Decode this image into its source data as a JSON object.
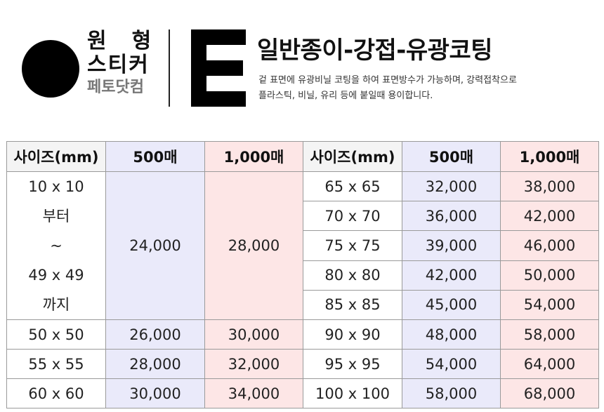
{
  "brand": {
    "line1": "원형",
    "line2": "스티커",
    "line3": "페토닷컴"
  },
  "product": {
    "letter": "E",
    "title": "일반종이-강접-유광코팅",
    "description_lines": [
      "겉 표면에 유광비닐 코팅을 하여 표면방수가 가능하며, 강력접착으로",
      "플라스틱, 비닐, 유리 등에 붙일때 용이합니다."
    ]
  },
  "table": {
    "headers": [
      "사이즈(mm)",
      "500매",
      "1,000매",
      "사이즈(mm)",
      "500매",
      "1,000매"
    ],
    "left_merged": {
      "size_lines": [
        "10 x 10",
        "부터",
        "~",
        "49 x 49",
        "까지"
      ],
      "price_500": "24,000",
      "price_1000": "28,000"
    },
    "left_rows": [
      {
        "size": "50 x 50",
        "p500": "26,000",
        "p1000": "30,000"
      },
      {
        "size": "55 x 55",
        "p500": "28,000",
        "p1000": "32,000"
      },
      {
        "size": "60 x 60",
        "p500": "30,000",
        "p1000": "34,000"
      }
    ],
    "right_rows": [
      {
        "size": "65 x 65",
        "p500": "32,000",
        "p1000": "38,000"
      },
      {
        "size": "70 x 70",
        "p500": "36,000",
        "p1000": "42,000"
      },
      {
        "size": "75 x 75",
        "p500": "39,000",
        "p1000": "46,000"
      },
      {
        "size": "80 x 80",
        "p500": "42,000",
        "p1000": "50,000"
      },
      {
        "size": "85 x 85",
        "p500": "45,000",
        "p1000": "54,000"
      },
      {
        "size": "90 x 90",
        "p500": "48,000",
        "p1000": "58,000"
      },
      {
        "size": "95 x 95",
        "p500": "54,000",
        "p1000": "64,000"
      },
      {
        "size": "100 x 100",
        "p500": "58,000",
        "p1000": "68,000"
      }
    ]
  },
  "colors": {
    "col_500_bg": "#eaeafa",
    "col_1000_bg": "#fde6e6",
    "size_bg": "#f4f4f4"
  }
}
